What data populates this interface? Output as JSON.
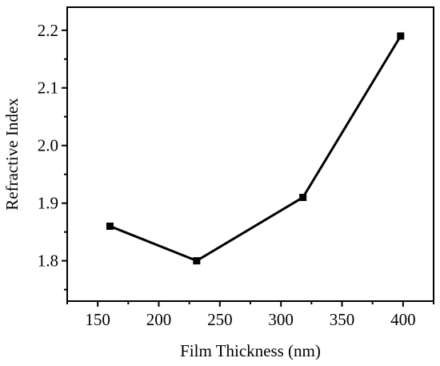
{
  "chart_data": {
    "type": "line",
    "title": "",
    "xlabel": "Film Thickness (nm)",
    "ylabel": "Refractive Index",
    "xlim": [
      125,
      425
    ],
    "ylim": [
      1.73,
      2.24
    ],
    "x_ticks": [
      150,
      200,
      250,
      300,
      350,
      400
    ],
    "x_tick_labels": [
      "150",
      "200",
      "250",
      "300",
      "350",
      "400"
    ],
    "y_ticks": [
      1.8,
      1.9,
      2.0,
      2.1,
      2.2
    ],
    "y_tick_labels": [
      "1.8",
      "1.9",
      "2.0",
      "2.1",
      "2.2"
    ],
    "grid": false,
    "legend": "none",
    "series": [
      {
        "x": [
          160,
          231,
          318,
          398
        ],
        "y": [
          1.86,
          1.8,
          1.91,
          2.19
        ],
        "color": "#000000",
        "marker": "square"
      }
    ]
  }
}
